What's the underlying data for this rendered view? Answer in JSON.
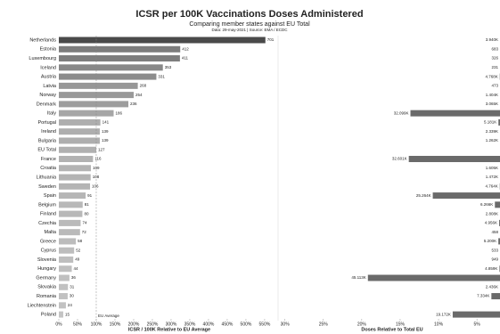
{
  "chart_data": {
    "type": "bar",
    "orientation": "horizontal",
    "title": "ICSR per 100K Vaccinations Doses Administered",
    "subtitle": "Comparing member states against EU Total",
    "note": "Data: 29-may-2021 | Source: EMA / ECDC",
    "categories": [
      "Netherlands",
      "Estonia",
      "Luxembourg",
      "Iceland",
      "Austria",
      "Latvia",
      "Norway",
      "Denmark",
      "Italy",
      "Portugal",
      "Ireland",
      "Bulgaria",
      "EU Total",
      "France",
      "Croatia",
      "Lithuania",
      "Sweden",
      "Spain",
      "Belgium",
      "Finland",
      "Czechia",
      "Malta",
      "Greece",
      "Cyprus",
      "Slovenia",
      "Hungary",
      "Germany",
      "Slovakia",
      "Romania",
      "Liechtenstein",
      "Poland"
    ],
    "panels": [
      {
        "xlabel": "ICSR / 100K Relative to EU Average",
        "values": [
          701,
          412,
          411,
          353,
          331,
          268,
          254,
          236,
          186,
          141,
          139,
          139,
          127,
          116,
          109,
          108,
          106,
          91,
          81,
          80,
          74,
          72,
          58,
          52,
          49,
          44,
          36,
          31,
          30,
          24,
          15
        ],
        "color_scale": [
          "#c4c4c4",
          "#4a4a4a"
        ],
        "xlim": [
          0,
          738
        ],
        "xticks": [
          {
            "value": 0,
            "label": "0%"
          },
          {
            "value": 63.5,
            "label": "50%"
          },
          {
            "value": 127,
            "label": "100%"
          },
          {
            "value": 190.5,
            "label": "150%"
          },
          {
            "value": 254,
            "label": "200%"
          },
          {
            "value": 317.5,
            "label": "250%"
          },
          {
            "value": 381,
            "label": "300%"
          },
          {
            "value": 444.5,
            "label": "350%"
          },
          {
            "value": 508,
            "label": "400%"
          },
          {
            "value": 571.5,
            "label": "450%"
          },
          {
            "value": 635,
            "label": "500%"
          },
          {
            "value": 698.5,
            "label": "550%"
          }
        ],
        "reference_line": {
          "label": "EU Average",
          "value": 127
        }
      },
      {
        "xlabel": "Doses Relative to Total EU",
        "values": [
          3940,
          683,
          326,
          231,
          4768,
          473,
          1404,
          3065,
          32099,
          5181,
          2339,
          1262,
          null,
          32601,
          1605,
          1472,
          4764,
          25264,
          6266,
          2808,
          4956,
          458,
          5200,
          533,
          949,
          4859,
          45113,
          2436,
          7334,
          null,
          19172
        ],
        "value_labels": [
          "3.940K",
          "683",
          "326",
          "231",
          "4.768K",
          "473",
          "1.404K",
          "3.065K",
          "32.099K",
          "5.181K",
          "2.339K",
          "1.262K",
          null,
          "32.601K",
          "1.605K",
          "1.472K",
          "4.764K",
          "25.264K",
          "6.266K",
          "2.808K",
          "4.956K",
          "458",
          "5.200K",
          "533",
          "949",
          "4.859K",
          "45.113K",
          "2.436K",
          "7.334K",
          null,
          "19.172K"
        ],
        "color": "#6a6a6a",
        "xlim": [
          71500,
          4700
        ],
        "xticks": [
          {
            "value": 70500,
            "label": "30%"
          },
          {
            "value": 58750,
            "label": "25%"
          },
          {
            "value": 47000,
            "label": "20%"
          },
          {
            "value": 35250,
            "label": "15%"
          },
          {
            "value": 23500,
            "label": "10%"
          },
          {
            "value": 11750,
            "label": "5%"
          }
        ]
      }
    ]
  }
}
